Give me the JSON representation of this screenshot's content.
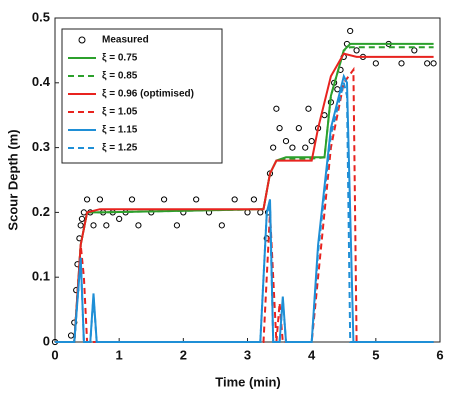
{
  "chart_data": {
    "type": "line",
    "xlabel": "Time (min)",
    "ylabel": "Scour Depth (m)",
    "xlim": [
      0,
      6
    ],
    "xticks": [
      0,
      1,
      2,
      3,
      4,
      5,
      6
    ],
    "ylim": [
      0,
      0.5
    ],
    "yticks": [
      0,
      0.1,
      0.2,
      0.3,
      0.4,
      0.5
    ],
    "legend": "upper left",
    "series": [
      {
        "name": "Measured",
        "color": "#000000",
        "marker": "circle",
        "x": [
          0.0,
          0.25,
          0.3,
          0.33,
          0.35,
          0.38,
          0.4,
          0.42,
          0.45,
          0.5,
          0.55,
          0.6,
          0.7,
          0.75,
          0.8,
          0.9,
          1.0,
          1.1,
          1.2,
          1.3,
          1.5,
          1.7,
          1.9,
          2.0,
          2.2,
          2.4,
          2.6,
          2.8,
          3.0,
          3.1,
          3.2,
          3.3,
          3.32,
          3.35,
          3.4,
          3.45,
          3.5,
          3.6,
          3.7,
          3.8,
          3.9,
          3.95,
          4.0,
          4.1,
          4.2,
          4.3,
          4.35,
          4.4,
          4.45,
          4.5,
          4.55,
          4.6,
          4.7,
          4.8,
          5.0,
          5.2,
          5.4,
          5.6,
          5.8,
          5.9
        ],
        "values": [
          0,
          0.01,
          0.03,
          0.08,
          0.12,
          0.16,
          0.18,
          0.19,
          0.2,
          0.22,
          0.2,
          0.18,
          0.22,
          0.2,
          0.18,
          0.2,
          0.19,
          0.2,
          0.22,
          0.18,
          0.2,
          0.22,
          0.18,
          0.2,
          0.22,
          0.2,
          0.18,
          0.22,
          0.2,
          0.22,
          0.2,
          0.16,
          0.2,
          0.26,
          0.3,
          0.36,
          0.33,
          0.31,
          0.3,
          0.33,
          0.3,
          0.36,
          0.31,
          0.33,
          0.35,
          0.37,
          0.4,
          0.39,
          0.42,
          0.44,
          0.46,
          0.48,
          0.45,
          0.44,
          0.43,
          0.46,
          0.43,
          0.45,
          0.43,
          0.43
        ]
      },
      {
        "name": "ξ = 0.75",
        "color": "#2ca02c",
        "x": [
          0,
          0.3,
          0.4,
          0.5,
          0.7,
          3.25,
          3.35,
          3.45,
          3.6,
          4.0,
          4.2,
          4.3,
          4.5,
          4.6,
          5.9
        ],
        "values": [
          0,
          0,
          0.15,
          0.2,
          0.2,
          0.205,
          0.26,
          0.28,
          0.285,
          0.285,
          0.285,
          0.38,
          0.45,
          0.46,
          0.46
        ]
      },
      {
        "name": "ξ = 0.85",
        "color": "#2ca02c",
        "dashed": true,
        "x": [
          0,
          0.3,
          0.4,
          0.5,
          0.7,
          3.25,
          3.35,
          3.45,
          3.6,
          4.0,
          4.2,
          4.3,
          4.5,
          4.6,
          5.9
        ],
        "values": [
          0,
          0,
          0.15,
          0.2,
          0.2,
          0.205,
          0.26,
          0.28,
          0.283,
          0.283,
          0.285,
          0.38,
          0.45,
          0.455,
          0.455
        ]
      },
      {
        "name": "ξ = 0.96 (optimised)",
        "color": "#e8231f",
        "x": [
          0,
          0.3,
          0.4,
          0.5,
          0.7,
          3.25,
          3.35,
          3.45,
          3.6,
          4.0,
          4.1,
          4.3,
          4.5,
          4.7,
          5.9
        ],
        "values": [
          0,
          0,
          0.15,
          0.2,
          0.205,
          0.205,
          0.26,
          0.28,
          0.28,
          0.28,
          0.33,
          0.41,
          0.445,
          0.44,
          0.44
        ]
      },
      {
        "name": "ξ = 1.05",
        "color": "#e8231f",
        "dashed": true,
        "x": [
          0,
          0.3,
          0.4,
          0.45,
          0.5,
          3.25,
          3.35,
          3.45,
          3.5,
          3.55,
          3.6,
          4.0,
          4.1,
          4.3,
          4.5,
          4.65,
          4.7,
          5.9
        ],
        "values": [
          0,
          0,
          0.15,
          0.1,
          0,
          0,
          0.2,
          0,
          0.06,
          0,
          0,
          0,
          0.1,
          0.3,
          0.4,
          0.42,
          0,
          0
        ]
      },
      {
        "name": "ξ = 1.15",
        "color": "#1f8fd6",
        "x": [
          0,
          0.3,
          0.4,
          0.45,
          0.55,
          0.6,
          0.65,
          3.2,
          3.3,
          3.35,
          3.4,
          3.5,
          3.55,
          3.6,
          4.0,
          4.1,
          4.3,
          4.5,
          4.55,
          4.65,
          5.9
        ],
        "values": [
          0,
          0,
          0.13,
          0,
          0,
          0.075,
          0,
          0,
          0.2,
          0.22,
          0,
          0,
          0.07,
          0,
          0,
          0.15,
          0.33,
          0.41,
          0.4,
          0,
          0
        ]
      },
      {
        "name": "ξ = 1.25",
        "color": "#1f8fd6",
        "dashed": true,
        "x": [
          0,
          0.3,
          0.4,
          0.45,
          0.55,
          0.6,
          0.65,
          3.2,
          3.3,
          3.35,
          3.4,
          3.5,
          3.55,
          3.6,
          4.0,
          4.1,
          4.3,
          4.5,
          4.55,
          4.6,
          5.9
        ],
        "values": [
          0,
          0,
          0.13,
          0,
          0,
          0.07,
          0,
          0,
          0.2,
          0.21,
          0,
          0,
          0.065,
          0,
          0,
          0.14,
          0.32,
          0.4,
          0.38,
          0,
          0
        ]
      }
    ]
  }
}
